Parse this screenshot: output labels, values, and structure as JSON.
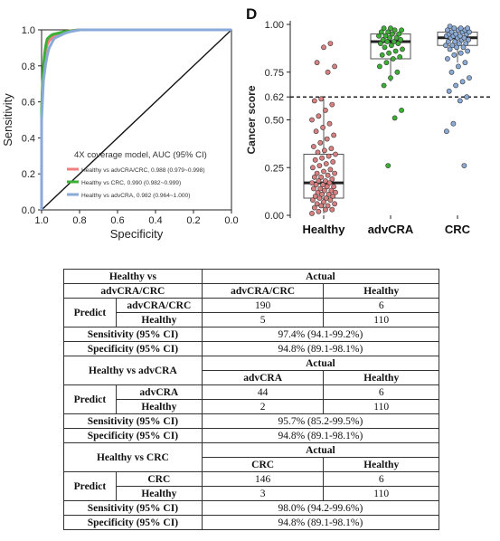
{
  "chart_data": [
    {
      "type": "line",
      "subtype": "roc",
      "xlabel": "Specificity",
      "ylabel": "Sensitivity",
      "xlim": [
        1.0,
        0.0
      ],
      "ylim": [
        0.0,
        1.0
      ],
      "x_ticks": [
        "1.0",
        "0.8",
        "0.6",
        "0.4",
        "0.2",
        "0.0"
      ],
      "x_tick_values": [
        1.0,
        0.8,
        0.6,
        0.4,
        0.2,
        0.0
      ],
      "y_ticks": [
        "0.0",
        "0.2",
        "0.4",
        "0.6",
        "0.8",
        "1.0"
      ],
      "y_tick_values": [
        0.0,
        0.2,
        0.4,
        0.6,
        0.8,
        1.0
      ],
      "legend_title": "4X coverage model, AUC (95% CI)",
      "legend_position": "bottom-right",
      "series": [
        {
          "name": "Healthy vs advCRA/CRC, 0.988 (0.979~0.998)",
          "color": "#f08080",
          "x": [
            1.0,
            1.0,
            0.995,
            0.99,
            0.985,
            0.98,
            0.97,
            0.96,
            0.95,
            0.94,
            0.93,
            0.92,
            0.9,
            0.88,
            0.85,
            0.8,
            0.0
          ],
          "y": [
            0.0,
            0.55,
            0.7,
            0.78,
            0.84,
            0.88,
            0.92,
            0.94,
            0.95,
            0.96,
            0.97,
            0.975,
            0.98,
            0.99,
            0.995,
            1.0,
            1.0
          ]
        },
        {
          "name": "Healthy vs CRC, 0.990 (0.982~0.999)",
          "color": "#3cb034",
          "x": [
            1.0,
            1.0,
            0.995,
            0.99,
            0.985,
            0.98,
            0.975,
            0.97,
            0.96,
            0.95,
            0.94,
            0.92,
            0.9,
            0.88,
            0.84,
            0.8,
            0.0
          ],
          "y": [
            0.0,
            0.56,
            0.7,
            0.8,
            0.86,
            0.9,
            0.93,
            0.95,
            0.96,
            0.97,
            0.975,
            0.98,
            0.985,
            0.99,
            0.995,
            1.0,
            1.0
          ]
        },
        {
          "name": "Healthy vs advCRA, 0.982 (0.964~1.000)",
          "color": "#8aaad8",
          "x": [
            1.0,
            1.0,
            0.995,
            0.99,
            0.98,
            0.97,
            0.96,
            0.95,
            0.94,
            0.93,
            0.92,
            0.9,
            0.88,
            0.85,
            0.8,
            0.0
          ],
          "y": [
            0.0,
            0.5,
            0.62,
            0.72,
            0.8,
            0.86,
            0.9,
            0.92,
            0.94,
            0.955,
            0.96,
            0.97,
            0.98,
            0.99,
            1.0,
            1.0
          ]
        }
      ]
    },
    {
      "type": "box",
      "panel_label": "D",
      "ylabel": "Cancer score",
      "ylim": [
        0.0,
        1.0
      ],
      "y_ticks": [
        "0.00",
        "0.25",
        "0.50",
        "0.62",
        "0.75",
        "1.00"
      ],
      "y_tick_values": [
        0.0,
        0.25,
        0.5,
        0.62,
        0.75,
        1.0
      ],
      "threshold": 0.62,
      "categories": [
        "Healthy",
        "advCRA",
        "CRC"
      ],
      "point_colors": [
        "#d98080",
        "#3cb034",
        "#8aaad8"
      ],
      "boxes": [
        {
          "q1": 0.09,
          "median": 0.17,
          "q3": 0.32,
          "whisker_low": 0.01,
          "whisker_high": 0.61
        },
        {
          "q1": 0.82,
          "median": 0.91,
          "q3": 0.95,
          "whisker_low": 0.7,
          "whisker_high": 0.98
        },
        {
          "q1": 0.89,
          "median": 0.93,
          "q3": 0.96,
          "whisker_low": 0.8,
          "whisker_high": 0.98
        }
      ],
      "points": [
        [
          0.01,
          0.02,
          0.03,
          0.03,
          0.04,
          0.05,
          0.05,
          0.06,
          0.06,
          0.07,
          0.08,
          0.08,
          0.09,
          0.09,
          0.1,
          0.1,
          0.11,
          0.11,
          0.12,
          0.12,
          0.13,
          0.13,
          0.14,
          0.14,
          0.15,
          0.15,
          0.16,
          0.16,
          0.17,
          0.17,
          0.18,
          0.18,
          0.19,
          0.2,
          0.2,
          0.21,
          0.22,
          0.22,
          0.23,
          0.24,
          0.25,
          0.26,
          0.27,
          0.28,
          0.29,
          0.3,
          0.31,
          0.32,
          0.33,
          0.34,
          0.35,
          0.36,
          0.38,
          0.4,
          0.42,
          0.44,
          0.46,
          0.48,
          0.5,
          0.52,
          0.55,
          0.58,
          0.6,
          0.61,
          0.75,
          0.78,
          0.8,
          0.88,
          0.9
        ],
        [
          0.26,
          0.51,
          0.55,
          0.68,
          0.72,
          0.75,
          0.78,
          0.8,
          0.82,
          0.83,
          0.84,
          0.85,
          0.86,
          0.87,
          0.88,
          0.89,
          0.9,
          0.9,
          0.91,
          0.91,
          0.92,
          0.92,
          0.93,
          0.93,
          0.94,
          0.94,
          0.95,
          0.95,
          0.96,
          0.96,
          0.97,
          0.97,
          0.98,
          0.98
        ],
        [
          0.26,
          0.44,
          0.48,
          0.6,
          0.62,
          0.65,
          0.68,
          0.7,
          0.72,
          0.75,
          0.78,
          0.8,
          0.82,
          0.84,
          0.85,
          0.86,
          0.87,
          0.88,
          0.88,
          0.89,
          0.89,
          0.9,
          0.9,
          0.91,
          0.91,
          0.92,
          0.92,
          0.93,
          0.93,
          0.93,
          0.94,
          0.94,
          0.94,
          0.95,
          0.95,
          0.95,
          0.96,
          0.96,
          0.96,
          0.97,
          0.97,
          0.97,
          0.98,
          0.98,
          0.98,
          0.99
        ]
      ]
    }
  ],
  "tables": {
    "t1": {
      "comparison_line1": "Healthy vs",
      "comparison_line2": "advCRA/CRC",
      "actual": "Actual",
      "col_pos": "advCRA/CRC",
      "col_neg": "Healthy",
      "predict": "Predict",
      "row_pos": "advCRA/CRC",
      "row_neg": "Healthy",
      "tp": "190",
      "fp": "6",
      "fn": "5",
      "tn": "110",
      "sens_label": "Sensitivity (95% CI)",
      "sens_value": "97.4% (94.1-99.2%)",
      "spec_label": "Specificity (95% CI)",
      "spec_value": "94.8% (89.1-98.1%)"
    },
    "t2": {
      "comparison": "Healthy vs advCRA",
      "actual": "Actual",
      "col_pos": "advCRA",
      "col_neg": "Healthy",
      "predict": "Predict",
      "row_pos": "advCRA",
      "row_neg": "Healthy",
      "tp": "44",
      "fp": "6",
      "fn": "2",
      "tn": "110",
      "sens_label": "Sensitivity (95% CI)",
      "sens_value": "95.7% (85.2-99.5%)",
      "spec_label": "Specificity (95% CI)",
      "spec_value": "94.8% (89.1-98.1%)"
    },
    "t3": {
      "comparison": "Healthy vs CRC",
      "actual": "Actual",
      "col_pos": "CRC",
      "col_neg": "Healthy",
      "predict": "Predict",
      "row_pos": "CRC",
      "row_neg": "Healthy",
      "tp": "146",
      "fp": "6",
      "fn": "3",
      "tn": "110",
      "sens_label": "Sensitivity (95% CI)",
      "sens_value": "98.0% (94.2-99.6%)",
      "spec_label": "Specificity (95% CI)",
      "spec_value": "94.8% (89.1-98.1%)"
    }
  }
}
